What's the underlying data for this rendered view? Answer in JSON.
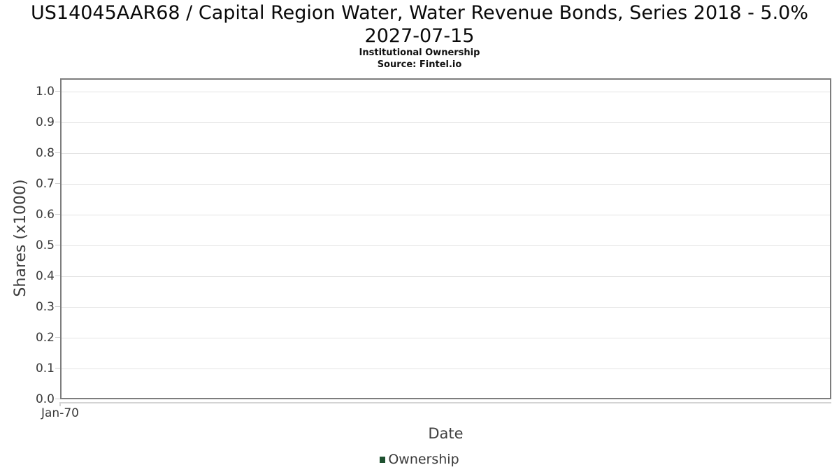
{
  "chart_data": {
    "type": "line",
    "title": "US14045AAR68 / Capital Region Water, Water Revenue Bonds, Series 2018 - 5.0% 2027-07-15",
    "subtitle": "Institutional Ownership",
    "source": "Source: Fintel.io",
    "xlabel": "Date",
    "ylabel": "Shares (x1000)",
    "x_tick_labels": [
      "Jan-70"
    ],
    "y_tick_labels": [
      "0.0",
      "0.1",
      "0.2",
      "0.3",
      "0.4",
      "0.5",
      "0.6",
      "0.7",
      "0.8",
      "0.9",
      "1.0"
    ],
    "ylim": [
      0.0,
      1.045
    ],
    "grid": "horizontal",
    "legend": {
      "position": "bottom",
      "entries": [
        {
          "label": "Ownership",
          "color": "#1e5130",
          "marker": "square"
        }
      ]
    },
    "series": [
      {
        "name": "Ownership",
        "x": [],
        "values": []
      }
    ],
    "colors": {
      "plot_border": "#7d7d7d",
      "gridline": "#e4e4e4",
      "tick_mark": "#cccccc",
      "tick_label": "#3a3a3a",
      "axis_label": "#3f3f3f",
      "title": "#0a0a0a",
      "legend_marker": "#1e5130",
      "background": "#ffffff"
    }
  }
}
